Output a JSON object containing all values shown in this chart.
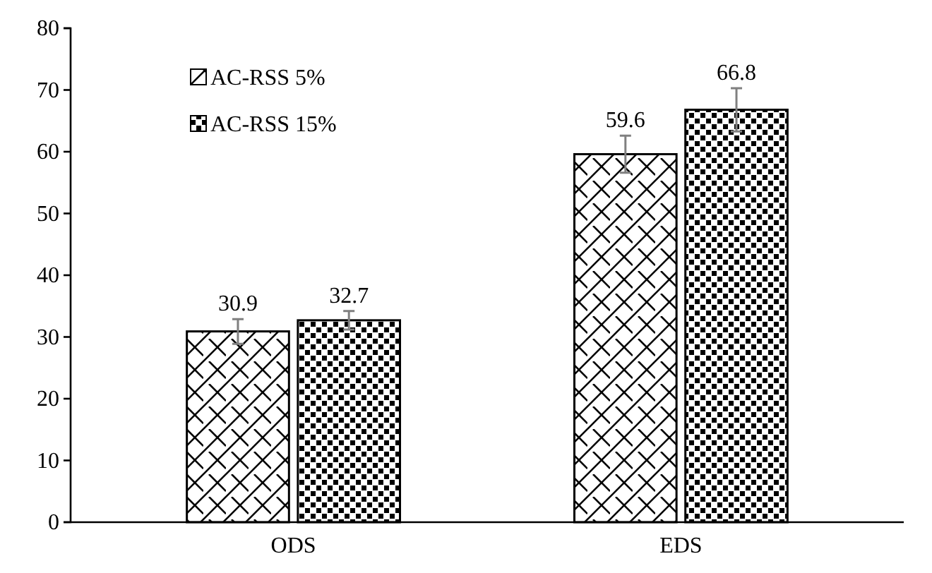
{
  "chart_data": {
    "type": "bar",
    "categories": [
      "ODS",
      "EDS"
    ],
    "series": [
      {
        "name": "AC-RSS 5%",
        "color": "#000000",
        "values": [
          30.9,
          59.6
        ],
        "errors": [
          2,
          3
        ]
      },
      {
        "name": "AC-RSS 15%",
        "color": "#000000",
        "values": [
          32.7,
          66.8
        ],
        "errors": [
          1.5,
          3.5
        ]
      }
    ],
    "ylim": [
      0,
      80
    ],
    "yticks": [
      0,
      10,
      20,
      30,
      40,
      50,
      60,
      70,
      80
    ],
    "data_labels": true,
    "legend": "top left",
    "grid": false
  }
}
